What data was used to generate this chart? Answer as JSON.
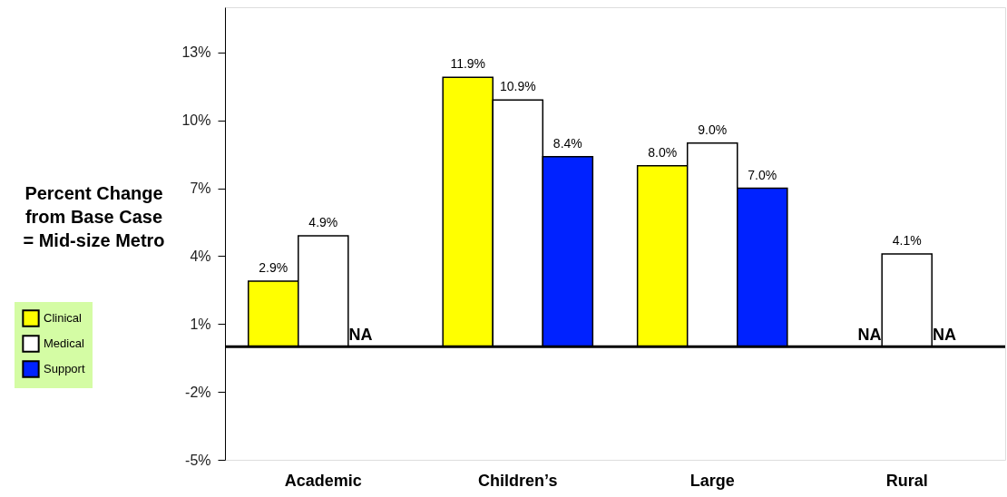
{
  "chart_data": {
    "type": "bar",
    "ylabel": "Percent Change\nfrom Base Case\n= Mid-size Metro",
    "categories": [
      "Academic",
      "Children’s",
      "Large",
      "Rural"
    ],
    "series": [
      {
        "name": "Clinical",
        "color": "#ffff00",
        "values": [
          2.9,
          11.9,
          8.0,
          null
        ],
        "value_labels": [
          "2.9%",
          "11.9%",
          "8.0%",
          "NA"
        ]
      },
      {
        "name": "Medical",
        "color": "#ffffff",
        "values": [
          4.9,
          10.9,
          9.0,
          4.1
        ],
        "value_labels": [
          "4.9%",
          "10.9%",
          "9.0%",
          "4.1%"
        ]
      },
      {
        "name": "Support",
        "color": "#0022ff",
        "values": [
          null,
          8.4,
          7.0,
          null
        ],
        "value_labels": [
          "NA",
          "8.4%",
          "7.0%",
          "NA"
        ]
      }
    ],
    "ylim": [
      -5,
      15
    ],
    "yticks": [
      {
        "value": -5,
        "label": "-5%"
      },
      {
        "value": -2,
        "label": "-2%"
      },
      {
        "value": 1,
        "label": "1%"
      },
      {
        "value": 4,
        "label": "4%"
      },
      {
        "value": 7,
        "label": "7%"
      },
      {
        "value": 10,
        "label": "10%"
      },
      {
        "value": 13,
        "label": "13%"
      }
    ],
    "ref_lines": [
      {
        "axis": "y",
        "value": 0
      }
    ],
    "grid": false,
    "legend": "left"
  }
}
